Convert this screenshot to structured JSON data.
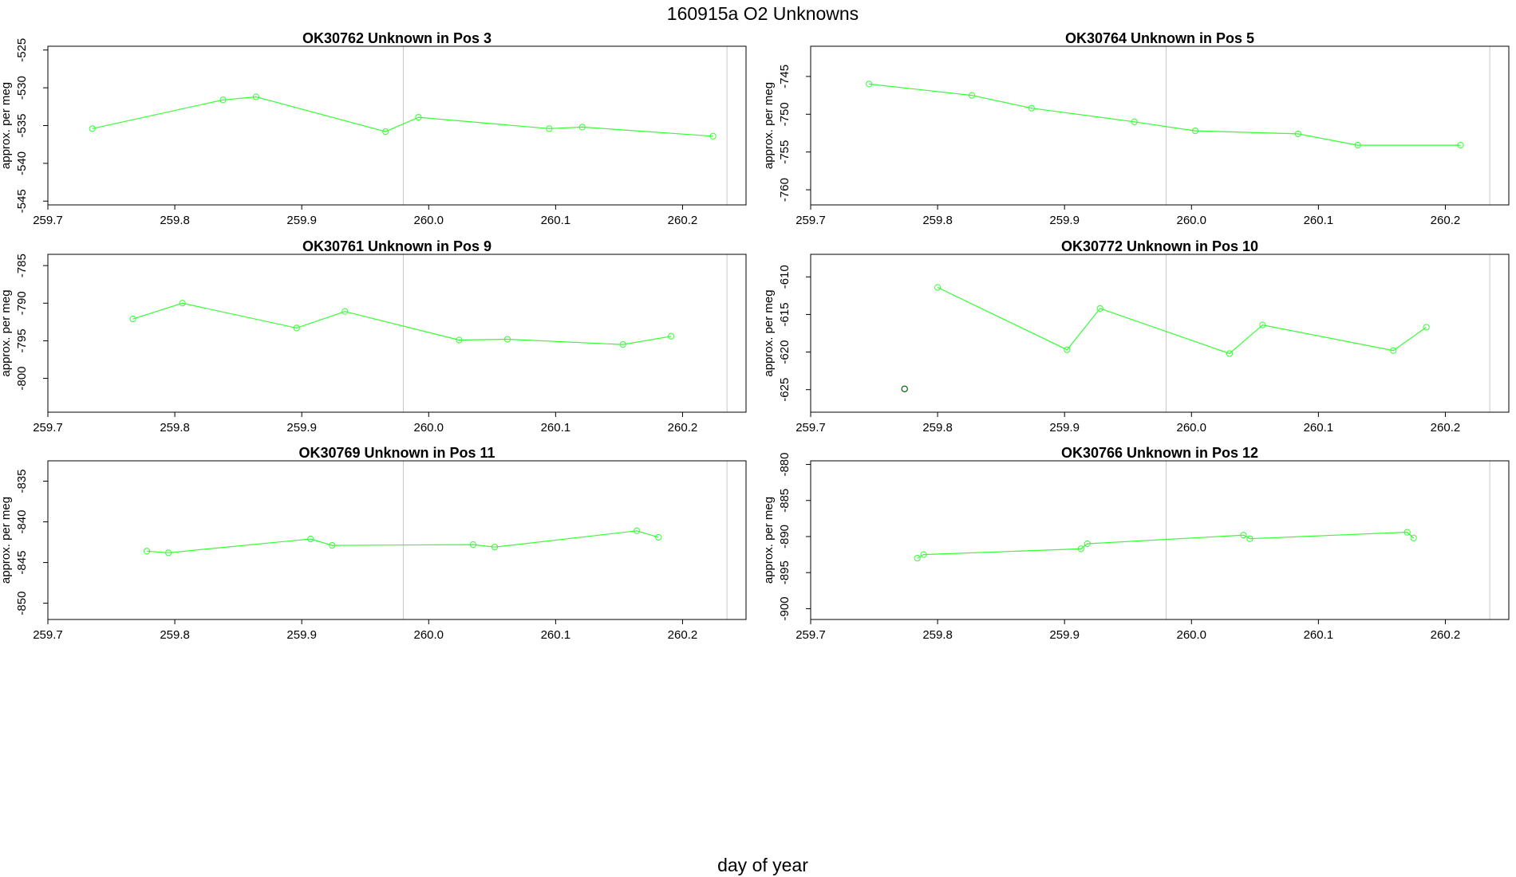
{
  "title": "160915a  O2 Unknowns",
  "xlabel": "day of year",
  "colors": {
    "series": "#33ff33",
    "highlight": "#006600",
    "axis": "#000000",
    "refline": "#c8c8c8"
  },
  "chart_data": [
    {
      "type": "line",
      "title": "OK30762    Unknown in Pos 3",
      "ylabel": "approx. per meg",
      "xlim": [
        259.7,
        260.25
      ],
      "ylim": [
        -545.5,
        -524.5
      ],
      "xticks": [
        "259.7",
        "259.8",
        "259.9",
        "260.0",
        "260.1",
        "260.2"
      ],
      "yticks": [
        "-525",
        "-530",
        "-535",
        "-540",
        "-545"
      ],
      "vlines": [
        259.98,
        260.235
      ],
      "x": [
        259.735,
        259.838,
        259.864,
        259.966,
        259.992,
        260.095,
        260.121,
        260.224
      ],
      "y": [
        -535.4,
        -531.6,
        -531.2,
        -535.8,
        -533.9,
        -535.4,
        -535.2,
        -536.4
      ],
      "isolated": []
    },
    {
      "type": "line",
      "title": "OK30764    Unknown in Pos 5",
      "ylabel": "approx. per meg",
      "xlim": [
        259.7,
        260.25
      ],
      "ylim": [
        -762,
        -741
      ],
      "xticks": [
        "259.7",
        "259.8",
        "259.9",
        "260.0",
        "260.1",
        "260.2"
      ],
      "yticks": [
        "-745",
        "-750",
        "-755",
        "-760"
      ],
      "vlines": [
        259.98,
        260.235
      ],
      "x": [
        259.746,
        259.827,
        259.874,
        259.955,
        260.003,
        260.084,
        260.131,
        260.212
      ],
      "y": [
        -746.0,
        -747.5,
        -749.2,
        -751.0,
        -752.2,
        -752.6,
        -754.1,
        -754.1
      ],
      "isolated": []
    },
    {
      "type": "line",
      "title": "OK30761    Unknown in Pos 9",
      "ylabel": "approx. per meg",
      "xlim": [
        259.7,
        260.25
      ],
      "ylim": [
        -804.5,
        -783.5
      ],
      "xticks": [
        "259.7",
        "259.8",
        "259.9",
        "260.0",
        "260.1",
        "260.2"
      ],
      "yticks": [
        "-785",
        "-790",
        "-795",
        "-800"
      ],
      "vlines": [
        259.98,
        260.235
      ],
      "x": [
        259.767,
        259.806,
        259.896,
        259.934,
        260.024,
        260.062,
        260.153,
        260.191
      ],
      "y": [
        -792.1,
        -790.0,
        -793.3,
        -791.1,
        -794.9,
        -794.8,
        -795.5,
        -794.4
      ],
      "isolated": []
    },
    {
      "type": "line",
      "title": "OK30772    Unknown in Pos 10",
      "ylabel": "approx. per meg",
      "xlim": [
        259.7,
        260.25
      ],
      "ylim": [
        -628,
        -607
      ],
      "xticks": [
        "259.7",
        "259.8",
        "259.9",
        "260.0",
        "260.1",
        "260.2"
      ],
      "yticks": [
        "-610",
        "-615",
        "-620",
        "-625"
      ],
      "vlines": [
        259.98,
        260.235
      ],
      "x": [
        259.8,
        259.902,
        259.928,
        260.03,
        260.056,
        260.159,
        260.185
      ],
      "y": [
        -611.4,
        -619.7,
        -614.2,
        -620.2,
        -616.4,
        -619.8,
        -616.7
      ],
      "isolated": [
        {
          "x": 259.774,
          "y": -624.9
        }
      ]
    },
    {
      "type": "line",
      "title": "OK30769    Unknown in Pos 11",
      "ylabel": "approx. per meg",
      "xlim": [
        259.7,
        260.25
      ],
      "ylim": [
        -852,
        -832.5
      ],
      "xticks": [
        "259.7",
        "259.8",
        "259.9",
        "260.0",
        "260.1",
        "260.2"
      ],
      "yticks": [
        "-835",
        "-840",
        "-845",
        "-850"
      ],
      "vlines": [
        259.98,
        260.235
      ],
      "x": [
        259.778,
        259.795,
        259.907,
        259.924,
        260.035,
        260.052,
        260.164,
        260.181
      ],
      "y": [
        -843.6,
        -843.8,
        -842.1,
        -842.9,
        -842.8,
        -843.1,
        -841.1,
        -841.9
      ],
      "isolated": []
    },
    {
      "type": "line",
      "title": "OK30766    Unknown in Pos 12",
      "ylabel": "approx. per meg",
      "xlim": [
        259.7,
        260.25
      ],
      "ylim": [
        -901.5,
        -879.5
      ],
      "xticks": [
        "259.7",
        "259.8",
        "259.9",
        "260.0",
        "260.1",
        "260.2"
      ],
      "yticks": [
        "-880",
        "-885",
        "-890",
        "-895",
        "-900"
      ],
      "vlines": [
        259.98,
        260.235
      ],
      "x": [
        259.784,
        259.789,
        259.913,
        259.918,
        260.041,
        260.046,
        260.17,
        260.175
      ],
      "y": [
        -893.0,
        -892.5,
        -891.7,
        -891.0,
        -889.8,
        -890.3,
        -889.4,
        -890.2
      ],
      "isolated": []
    }
  ]
}
